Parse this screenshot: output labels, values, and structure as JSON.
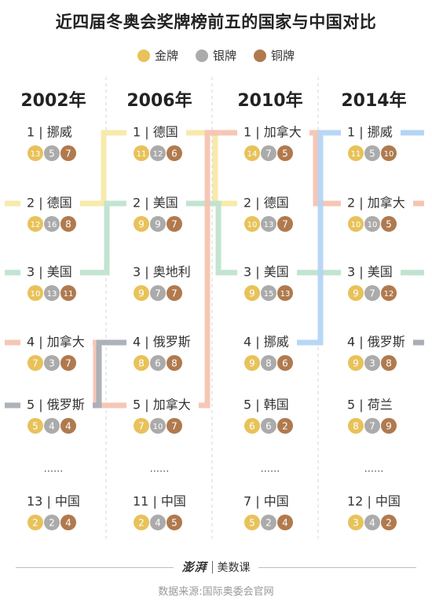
{
  "title": "近四届冬奥会奖牌榜前五的国家与中国对比",
  "legend": [
    {
      "label": "金牌",
      "color": "#E8C25A"
    },
    {
      "label": "银牌",
      "color": "#ABABAB"
    },
    {
      "label": "铜牌",
      "color": "#B07A4E"
    }
  ],
  "footer": {
    "brand_logo": "澎湃",
    "brand_name": "美数课",
    "source": "数据来源:国际奥委会官网"
  },
  "chart_data": {
    "type": "table",
    "country_colors": {
      "挪威": "#B5D4F4",
      "德国": "#F8E9A6",
      "美国": "#BFE3CF",
      "加拿大": "#F6C4B2",
      "俄罗斯": "#A9AEB6"
    },
    "years": [
      {
        "year": "2002年",
        "top5": [
          {
            "rank": "1",
            "country": "挪威",
            "gold": 13,
            "silver": 5,
            "bronze": 7
          },
          {
            "rank": "2",
            "country": "德国",
            "gold": 12,
            "silver": 16,
            "bronze": 8
          },
          {
            "rank": "3",
            "country": "美国",
            "gold": 10,
            "silver": 13,
            "bronze": 11
          },
          {
            "rank": "4",
            "country": "加拿大",
            "gold": 7,
            "silver": 3,
            "bronze": 7
          },
          {
            "rank": "5",
            "country": "俄罗斯",
            "gold": 5,
            "silver": 4,
            "bronze": 4
          }
        ],
        "ellipsis": "......",
        "china": {
          "rank": "13",
          "country": "中国",
          "gold": 2,
          "silver": 2,
          "bronze": 4
        }
      },
      {
        "year": "2006年",
        "top5": [
          {
            "rank": "1",
            "country": "德国",
            "gold": 11,
            "silver": 12,
            "bronze": 6
          },
          {
            "rank": "2",
            "country": "美国",
            "gold": 9,
            "silver": 9,
            "bronze": 7
          },
          {
            "rank": "3",
            "country": "奥地利",
            "gold": 9,
            "silver": 7,
            "bronze": 7
          },
          {
            "rank": "4",
            "country": "俄罗斯",
            "gold": 8,
            "silver": 6,
            "bronze": 8
          },
          {
            "rank": "5",
            "country": "加拿大",
            "gold": 7,
            "silver": 10,
            "bronze": 7
          }
        ],
        "ellipsis": "......",
        "china": {
          "rank": "11",
          "country": "中国",
          "gold": 2,
          "silver": 4,
          "bronze": 5
        }
      },
      {
        "year": "2010年",
        "top5": [
          {
            "rank": "1",
            "country": "加拿大",
            "gold": 14,
            "silver": 7,
            "bronze": 5
          },
          {
            "rank": "2",
            "country": "德国",
            "gold": 10,
            "silver": 13,
            "bronze": 7
          },
          {
            "rank": "3",
            "country": "美国",
            "gold": 9,
            "silver": 15,
            "bronze": 13
          },
          {
            "rank": "4",
            "country": "挪威",
            "gold": 9,
            "silver": 8,
            "bronze": 6
          },
          {
            "rank": "5",
            "country": "韩国",
            "gold": 6,
            "silver": 6,
            "bronze": 2
          }
        ],
        "ellipsis": "......",
        "china": {
          "rank": "7",
          "country": "中国",
          "gold": 5,
          "silver": 2,
          "bronze": 4
        }
      },
      {
        "year": "2014年",
        "top5": [
          {
            "rank": "1",
            "country": "挪威",
            "gold": 11,
            "silver": 5,
            "bronze": 10
          },
          {
            "rank": "2",
            "country": "加拿大",
            "gold": 10,
            "silver": 10,
            "bronze": 5
          },
          {
            "rank": "3",
            "country": "美国",
            "gold": 9,
            "silver": 7,
            "bronze": 12
          },
          {
            "rank": "4",
            "country": "俄罗斯",
            "gold": 9,
            "silver": 3,
            "bronze": 8
          },
          {
            "rank": "5",
            "country": "荷兰",
            "gold": 8,
            "silver": 7,
            "bronze": 9
          }
        ],
        "ellipsis": "......",
        "china": {
          "rank": "12",
          "country": "中国",
          "gold": 3,
          "silver": 4,
          "bronze": 2
        }
      }
    ]
  }
}
